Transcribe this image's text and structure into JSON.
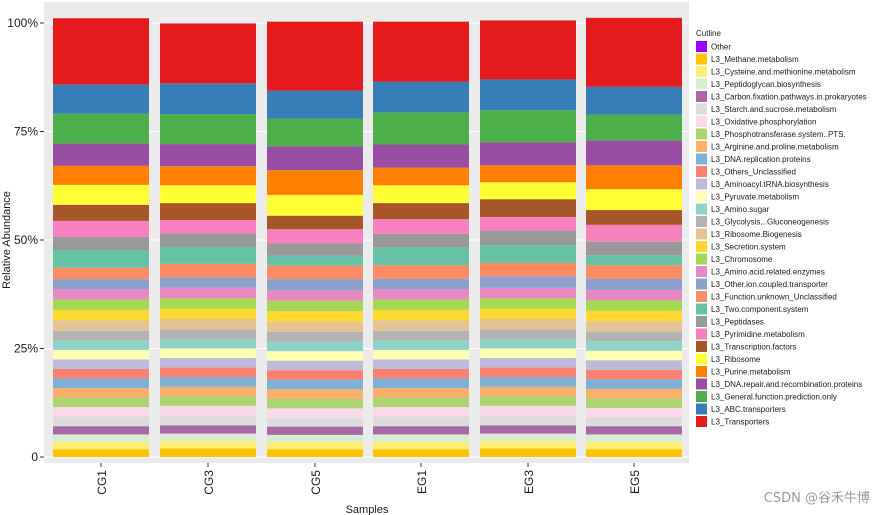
{
  "chart_data": {
    "type": "bar",
    "stacked": true,
    "title": "",
    "xlabel": "Samples",
    "ylabel": "Relative Abundance",
    "ylim": [
      0,
      100
    ],
    "y_ticks": [
      "0",
      "25%",
      "50%",
      "75%",
      "100%"
    ],
    "y_tick_values": [
      0,
      25,
      50,
      75,
      100
    ],
    "categories": [
      "CG1",
      "CG3",
      "CG5",
      "EG1",
      "EG3",
      "EG5"
    ],
    "legend_title": "Cutline",
    "legend_position": "right",
    "series": [
      {
        "name": "Other",
        "color": "#9b00ff",
        "values": [
          0,
          0,
          0,
          0,
          0,
          0
        ]
      },
      {
        "name": "L3_Methane.metabolism",
        "color": "#ffc400",
        "values": [
          1.8,
          2.0,
          1.8,
          1.8,
          2.0,
          1.8
        ]
      },
      {
        "name": "L3_Cysteine.and.methionine.metabolism",
        "color": "#ffef75",
        "values": [
          1.7,
          1.7,
          1.7,
          1.7,
          1.7,
          1.7
        ]
      },
      {
        "name": "L3_Peptidoglycan.biosynthesis",
        "color": "#d8ecd3",
        "values": [
          1.7,
          1.7,
          1.6,
          1.7,
          1.7,
          1.7
        ]
      },
      {
        "name": "L3_Carbon.fixation.pathways.in.prokaryotes",
        "color": "#a86aa2",
        "values": [
          1.9,
          1.9,
          1.9,
          1.9,
          1.9,
          1.9
        ]
      },
      {
        "name": "L3_Starch.and.sucrose.metabolism",
        "color": "#dcdcdc",
        "values": [
          2.2,
          2.3,
          2.0,
          2.2,
          2.3,
          2.0
        ]
      },
      {
        "name": "L3_Oxidative.phosphorylation",
        "color": "#fbd8ea",
        "values": [
          2.2,
          2.2,
          2.2,
          2.2,
          2.2,
          2.2
        ]
      },
      {
        "name": "L3_Phosphotransferase.system..PTS.",
        "color": "#acd470",
        "values": [
          2.2,
          2.2,
          2.2,
          2.2,
          2.2,
          2.2
        ]
      },
      {
        "name": "L3_Arginine.and.proline.metabolism",
        "color": "#fdb069",
        "values": [
          2.2,
          2.2,
          2.2,
          2.2,
          2.2,
          2.2
        ]
      },
      {
        "name": "L3_DNA.replication.proteins",
        "color": "#7fb1d8",
        "values": [
          2.2,
          2.2,
          2.2,
          2.2,
          2.2,
          2.2
        ]
      },
      {
        "name": "L3_Others_Unclassified",
        "color": "#fa8072",
        "values": [
          2.2,
          2.2,
          2.2,
          2.2,
          2.2,
          2.2
        ]
      },
      {
        "name": "L3_Aminoacyl.tRNA.biosynthesis",
        "color": "#bebada",
        "values": [
          2.2,
          2.2,
          2.2,
          2.2,
          2.2,
          2.2
        ]
      },
      {
        "name": "L3_Pyruvate.metabolism",
        "color": "#ffffb3",
        "values": [
          2.2,
          2.2,
          2.2,
          2.2,
          2.2,
          2.2
        ]
      },
      {
        "name": "L3_Amino.sugar",
        "color": "#8dd3c7",
        "values": [
          2.2,
          2.2,
          2.2,
          2.2,
          2.2,
          2.2
        ]
      },
      {
        "name": "L3_Glycolysis...Gluconeogenesis",
        "color": "#b3b3b3",
        "values": [
          2.2,
          2.2,
          2.2,
          2.2,
          2.2,
          2.2
        ]
      },
      {
        "name": "L3_Ribosome.Biogenesis",
        "color": "#e5c494",
        "values": [
          2.4,
          2.4,
          2.4,
          2.4,
          2.4,
          2.4
        ]
      },
      {
        "name": "L3_Secretion.system",
        "color": "#ffd92f",
        "values": [
          2.4,
          2.4,
          2.4,
          2.4,
          2.4,
          2.4
        ]
      },
      {
        "name": "L3_Chromosome",
        "color": "#a6d854",
        "values": [
          2.4,
          2.4,
          2.4,
          2.4,
          2.4,
          2.4
        ]
      },
      {
        "name": "L3_Amino.acid.related.enzymes",
        "color": "#e78ac3",
        "values": [
          2.4,
          2.4,
          2.4,
          2.4,
          2.4,
          2.4
        ]
      },
      {
        "name": "L3_Other.ion.coupled.transporter",
        "color": "#8da0cb",
        "values": [
          2.3,
          2.4,
          2.6,
          2.4,
          2.6,
          2.6
        ]
      },
      {
        "name": "L3_Function.unknown_Unclassified",
        "color": "#fc8d62",
        "values": [
          2.6,
          3.1,
          3.1,
          3.1,
          3.1,
          3.1
        ]
      },
      {
        "name": "L3_Two.component.system",
        "color": "#66c2a5",
        "values": [
          4.1,
          3.9,
          2.3,
          4.1,
          4.1,
          2.3
        ]
      },
      {
        "name": "L3_Peptidases",
        "color": "#999999",
        "values": [
          3.0,
          3.1,
          2.8,
          3.1,
          3.4,
          3.1
        ]
      },
      {
        "name": "L3_Pyrimidine.metabolism",
        "color": "#f781bf",
        "values": [
          3.7,
          3.1,
          3.3,
          3.4,
          3.1,
          3.9
        ]
      },
      {
        "name": "L3_Transcription.factors",
        "color": "#a65628",
        "values": [
          3.7,
          3.9,
          3.1,
          3.7,
          4.1,
          3.4
        ]
      },
      {
        "name": "L3_Ribosome",
        "color": "#ffff33",
        "values": [
          4.6,
          4.1,
          4.8,
          4.1,
          3.9,
          4.8
        ]
      },
      {
        "name": "L3_Purine.metabolism",
        "color": "#ff7f00",
        "values": [
          4.4,
          4.4,
          5.7,
          4.1,
          3.9,
          5.5
        ]
      },
      {
        "name": "L3_DNA.repair.and.recombination.proteins",
        "color": "#984ea3",
        "values": [
          5.1,
          5.1,
          5.5,
          5.3,
          5.3,
          5.7
        ]
      },
      {
        "name": "L3_General.function.prediction.only",
        "color": "#4daf4a",
        "values": [
          6.9,
          6.9,
          6.4,
          7.4,
          7.4,
          6.0
        ]
      },
      {
        "name": "L3_ABC.transporters",
        "color": "#377eb8",
        "values": [
          6.7,
          7.1,
          6.4,
          7.1,
          7.1,
          6.4
        ]
      },
      {
        "name": "L3_Transporters",
        "color": "#e41a1c",
        "values": [
          15.3,
          13.8,
          15.9,
          13.8,
          13.6,
          15.9
        ]
      }
    ]
  },
  "watermark": "CSDN @谷禾牛博"
}
